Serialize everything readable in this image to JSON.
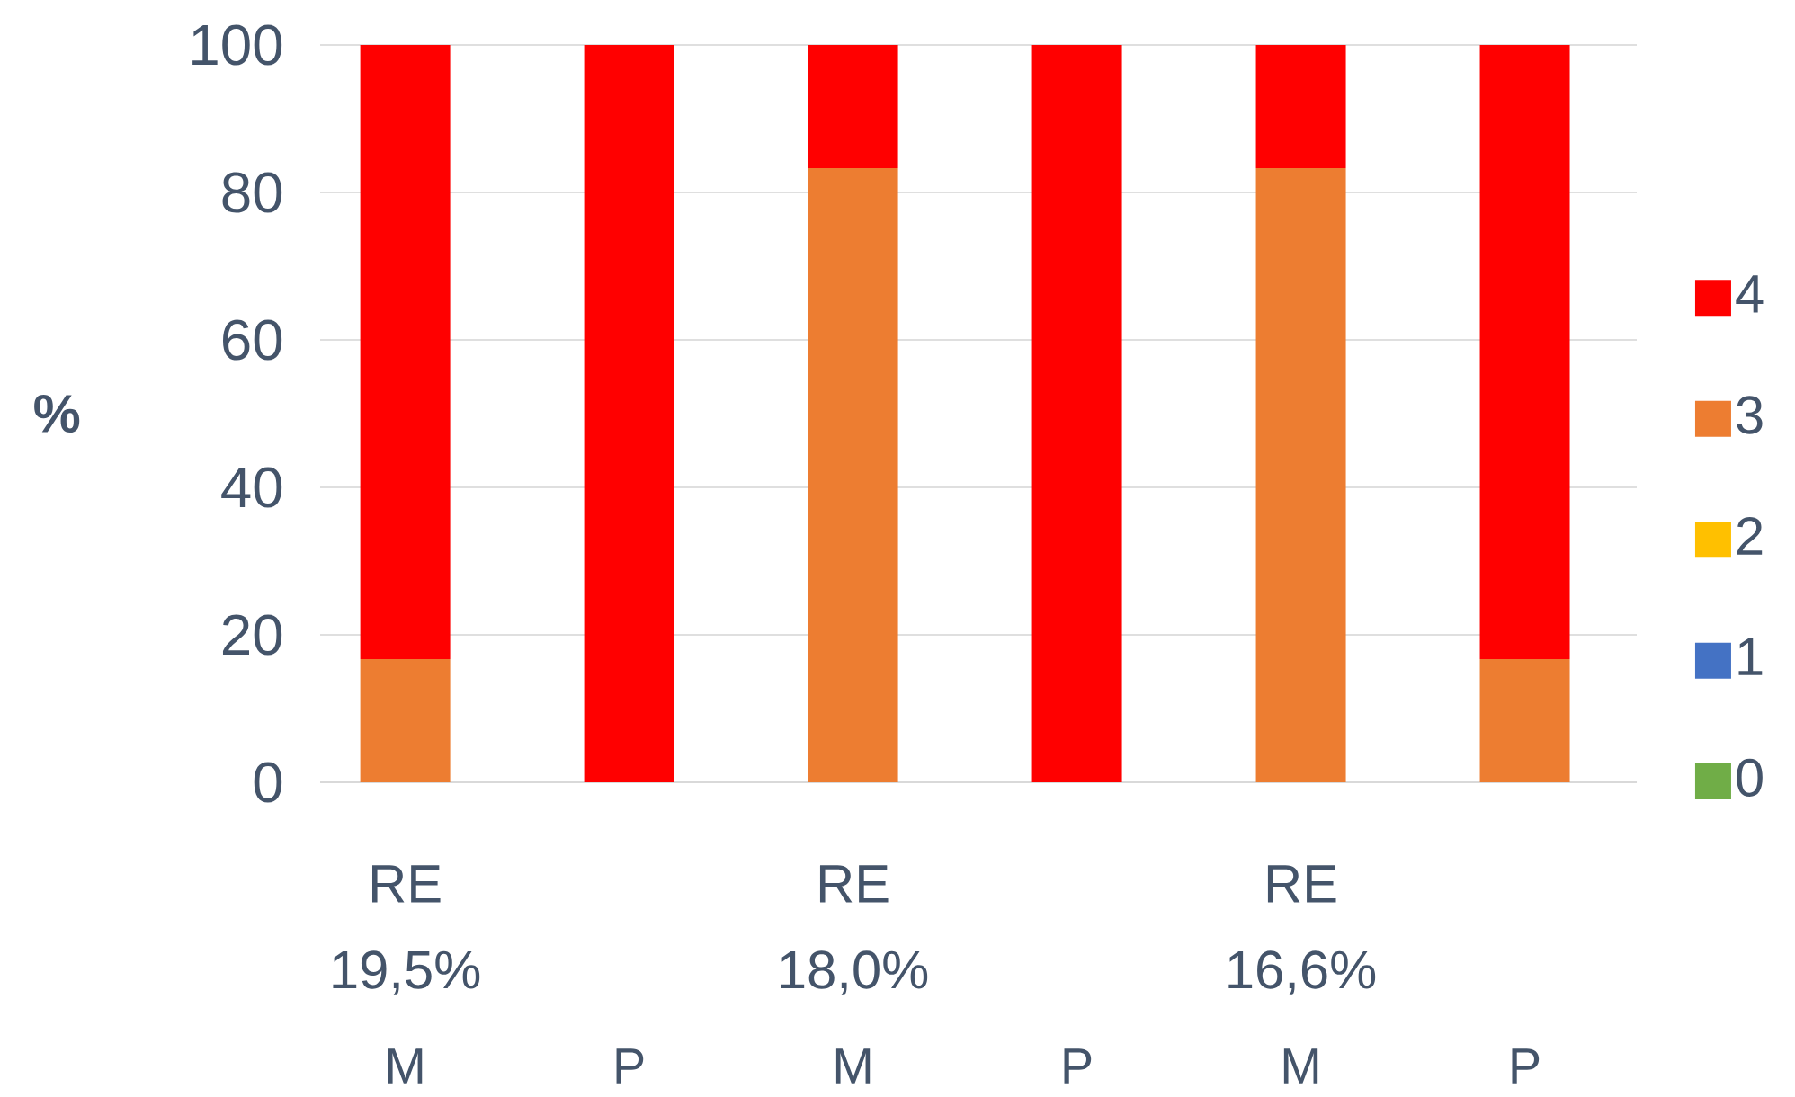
{
  "chart_data": {
    "type": "bar",
    "stacked": true,
    "ylabel": "%",
    "categories": [
      "M",
      "P",
      "M",
      "P",
      "M",
      "P"
    ],
    "annotations": [
      "RE 19,5%",
      "RE 18,0%",
      "RE 16,6%"
    ],
    "series": [
      {
        "name": "0",
        "color": "#70ad47",
        "values": [
          0,
          0,
          0,
          0,
          0,
          0
        ]
      },
      {
        "name": "1",
        "color": "#4472c4",
        "values": [
          0,
          0,
          0,
          0,
          0,
          0
        ]
      },
      {
        "name": "2",
        "color": "#ffc000",
        "values": [
          0,
          0,
          0,
          0,
          0,
          0
        ]
      },
      {
        "name": "3",
        "color": "#ed7d31",
        "values": [
          16.7,
          0,
          83.3,
          0,
          83.3,
          16.7
        ]
      },
      {
        "name": "4",
        "color": "#ff0000",
        "values": [
          83.3,
          100,
          16.7,
          100,
          16.7,
          83.3
        ]
      }
    ],
    "ylim": [
      0,
      100
    ],
    "yticks": [
      0,
      20,
      40,
      60,
      80,
      100
    ],
    "grid": "y",
    "legend": "right"
  }
}
